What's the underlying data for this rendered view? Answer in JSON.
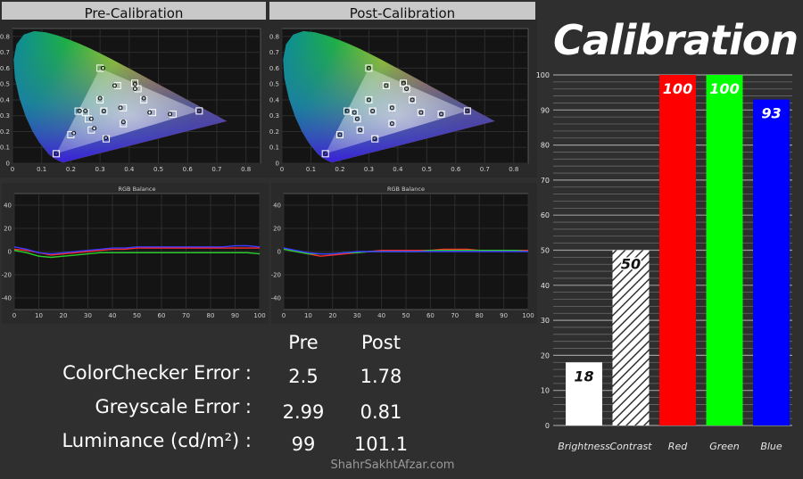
{
  "headers": {
    "pre": "Pre-Calibration",
    "post": "Post-Calibration"
  },
  "title": "Calibration",
  "watermark": "ShahrSakhtAfzar.com",
  "stats": {
    "columns": [
      "Pre",
      "Post"
    ],
    "rows": [
      {
        "label": "ColorChecker Error :",
        "pre": "2.5",
        "post": "1.78"
      },
      {
        "label": "Greyscale Error :",
        "pre": "2.99",
        "post": "0.81"
      },
      {
        "label": "Luminance (cd/m²) :",
        "pre": "99",
        "post": "101.1"
      }
    ]
  },
  "chart_data": [
    {
      "type": "scatter",
      "panel": "Pre-Calibration",
      "chart": "CIE 1931 gamut",
      "xlim": [
        0,
        0.85
      ],
      "ylim": [
        0,
        0.85
      ],
      "xticks": [
        "0",
        "0.1",
        "0.2",
        "0.3",
        "0.4",
        "0.5",
        "0.6",
        "0.7",
        "0.8"
      ],
      "yticks": [
        "0",
        "0.1",
        "0.2",
        "0.3",
        "0.4",
        "0.5",
        "0.6",
        "0.7",
        "0.8"
      ],
      "gamut_triangle": [
        [
          0.64,
          0.33
        ],
        [
          0.3,
          0.6
        ],
        [
          0.15,
          0.06
        ]
      ],
      "targets": [
        [
          0.64,
          0.33
        ],
        [
          0.3,
          0.6
        ],
        [
          0.15,
          0.06
        ],
        [
          0.225,
          0.329
        ],
        [
          0.321,
          0.154
        ],
        [
          0.419,
          0.505
        ],
        [
          0.313,
          0.329
        ],
        [
          0.38,
          0.35
        ],
        [
          0.26,
          0.28
        ],
        [
          0.45,
          0.4
        ],
        [
          0.36,
          0.49
        ],
        [
          0.27,
          0.21
        ],
        [
          0.48,
          0.32
        ],
        [
          0.2,
          0.18
        ],
        [
          0.38,
          0.25
        ],
        [
          0.3,
          0.4
        ],
        [
          0.55,
          0.31
        ],
        [
          0.43,
          0.47
        ],
        [
          0.25,
          0.32
        ]
      ],
      "measured": [
        [
          0.64,
          0.33
        ],
        [
          0.31,
          0.6
        ],
        [
          0.15,
          0.06
        ],
        [
          0.23,
          0.33
        ],
        [
          0.32,
          0.16
        ],
        [
          0.42,
          0.5
        ],
        [
          0.313,
          0.329
        ],
        [
          0.37,
          0.35
        ],
        [
          0.27,
          0.28
        ],
        [
          0.45,
          0.41
        ],
        [
          0.35,
          0.49
        ],
        [
          0.28,
          0.22
        ],
        [
          0.47,
          0.32
        ],
        [
          0.21,
          0.19
        ],
        [
          0.38,
          0.26
        ],
        [
          0.3,
          0.41
        ],
        [
          0.54,
          0.31
        ],
        [
          0.42,
          0.47
        ],
        [
          0.25,
          0.33
        ]
      ]
    },
    {
      "type": "scatter",
      "panel": "Post-Calibration",
      "chart": "CIE 1931 gamut",
      "xlim": [
        0,
        0.85
      ],
      "ylim": [
        0,
        0.85
      ],
      "xticks": [
        "0",
        "0.1",
        "0.2",
        "0.3",
        "0.4",
        "0.5",
        "0.6",
        "0.7",
        "0.8"
      ],
      "yticks": [
        "0",
        "0.1",
        "0.2",
        "0.3",
        "0.4",
        "0.5",
        "0.6",
        "0.7",
        "0.8"
      ],
      "gamut_triangle": [
        [
          0.64,
          0.33
        ],
        [
          0.3,
          0.6
        ],
        [
          0.15,
          0.06
        ]
      ],
      "targets": [
        [
          0.64,
          0.33
        ],
        [
          0.3,
          0.6
        ],
        [
          0.15,
          0.06
        ],
        [
          0.225,
          0.329
        ],
        [
          0.321,
          0.154
        ],
        [
          0.419,
          0.505
        ],
        [
          0.313,
          0.329
        ],
        [
          0.38,
          0.35
        ],
        [
          0.26,
          0.28
        ],
        [
          0.45,
          0.4
        ],
        [
          0.36,
          0.49
        ],
        [
          0.27,
          0.21
        ],
        [
          0.48,
          0.32
        ],
        [
          0.2,
          0.18
        ],
        [
          0.38,
          0.25
        ],
        [
          0.3,
          0.4
        ],
        [
          0.55,
          0.31
        ],
        [
          0.43,
          0.47
        ],
        [
          0.25,
          0.32
        ]
      ],
      "measured": [
        [
          0.64,
          0.33
        ],
        [
          0.3,
          0.6
        ],
        [
          0.15,
          0.06
        ],
        [
          0.225,
          0.33
        ],
        [
          0.32,
          0.155
        ],
        [
          0.42,
          0.505
        ],
        [
          0.313,
          0.329
        ],
        [
          0.38,
          0.35
        ],
        [
          0.26,
          0.28
        ],
        [
          0.45,
          0.4
        ],
        [
          0.36,
          0.49
        ],
        [
          0.27,
          0.21
        ],
        [
          0.48,
          0.32
        ],
        [
          0.2,
          0.18
        ],
        [
          0.38,
          0.25
        ],
        [
          0.3,
          0.4
        ],
        [
          0.55,
          0.31
        ],
        [
          0.43,
          0.47
        ],
        [
          0.25,
          0.32
        ]
      ]
    },
    {
      "type": "line",
      "panel": "Pre-Calibration",
      "title": "RGB Balance",
      "xlim": [
        0,
        100
      ],
      "ylim": [
        -50,
        50
      ],
      "xticks": [
        "0",
        "10",
        "20",
        "30",
        "40",
        "50",
        "60",
        "70",
        "80",
        "90",
        "100"
      ],
      "yticks": [
        "40",
        "20",
        "0",
        "-20",
        "-40"
      ],
      "x": [
        0,
        5,
        10,
        15,
        20,
        25,
        30,
        35,
        40,
        45,
        50,
        55,
        60,
        65,
        70,
        75,
        80,
        85,
        90,
        95,
        100
      ],
      "series": [
        {
          "color": "#ff2a2a",
          "values": [
            2,
            1,
            -1,
            -3,
            -2,
            -1,
            0,
            1,
            2,
            2,
            3,
            3,
            3,
            3,
            3,
            3,
            3,
            3,
            3,
            3,
            3
          ]
        },
        {
          "color": "#2ad12a",
          "values": [
            1,
            -1,
            -4,
            -5,
            -4,
            -3,
            -2,
            -1,
            -1,
            -1,
            -1,
            -1,
            -1,
            -1,
            -1,
            -1,
            -1,
            -1,
            -1,
            -1,
            -2
          ]
        },
        {
          "color": "#3a3aff",
          "values": [
            4,
            2,
            -1,
            -2,
            -1,
            0,
            1,
            2,
            3,
            3,
            4,
            4,
            4,
            4,
            4,
            4,
            4,
            4,
            5,
            5,
            4
          ]
        }
      ]
    },
    {
      "type": "line",
      "panel": "Post-Calibration",
      "title": "RGB Balance",
      "xlim": [
        0,
        100
      ],
      "ylim": [
        -50,
        50
      ],
      "xticks": [
        "0",
        "10",
        "20",
        "30",
        "40",
        "50",
        "60",
        "70",
        "80",
        "90",
        "100"
      ],
      "yticks": [
        "40",
        "20",
        "0",
        "-20",
        "-40"
      ],
      "x": [
        0,
        5,
        10,
        15,
        20,
        25,
        30,
        35,
        40,
        45,
        50,
        55,
        60,
        65,
        70,
        75,
        80,
        85,
        90,
        95,
        100
      ],
      "series": [
        {
          "color": "#ff2a2a",
          "values": [
            3,
            0,
            -2,
            -4,
            -3,
            -2,
            -1,
            0,
            1,
            1,
            1,
            1,
            1,
            2,
            2,
            2,
            1,
            1,
            1,
            1,
            1
          ]
        },
        {
          "color": "#2ad12a",
          "values": [
            2,
            0,
            -2,
            -2,
            -2,
            -1,
            -1,
            0,
            0,
            0,
            0,
            0,
            1,
            1,
            1,
            1,
            1,
            1,
            1,
            1,
            0
          ]
        },
        {
          "color": "#3a3aff",
          "values": [
            3,
            1,
            -1,
            -2,
            -2,
            -1,
            0,
            0,
            0,
            0,
            0,
            0,
            0,
            0,
            0,
            0,
            0,
            0,
            0,
            0,
            0
          ]
        }
      ]
    },
    {
      "type": "bar",
      "title": "Calibration",
      "categories": [
        "Brightness",
        "Contrast",
        "Red",
        "Green",
        "Blue"
      ],
      "values": [
        18,
        50,
        100,
        100,
        93
      ],
      "labels": [
        "18",
        "50",
        "100",
        "100",
        "93"
      ],
      "colors": [
        "#ffffff",
        "hatched",
        "#ff0000",
        "#00ff00",
        "#0000ff"
      ],
      "ylim": [
        0,
        100
      ],
      "yticks": [
        "0",
        "10",
        "20",
        "30",
        "40",
        "50",
        "60",
        "70",
        "80",
        "90",
        "100"
      ]
    }
  ]
}
